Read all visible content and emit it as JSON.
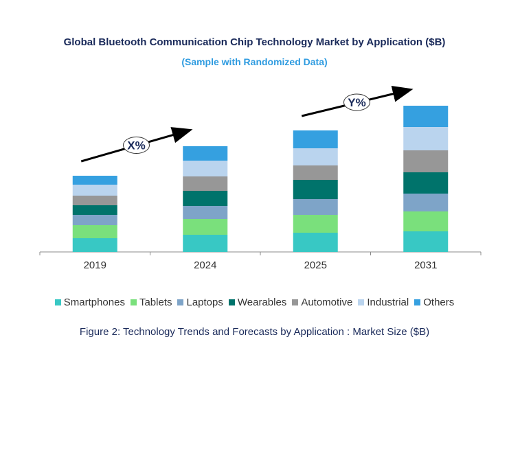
{
  "chart_data": {
    "type": "bar",
    "stacked": true,
    "title": "Global Bluetooth Communication Chip Technology Market by Application ($B)",
    "subtitle": "(Sample with Randomized Data)",
    "caption": "Figure 2: Technology  Trends  and Forecasts by Application : Market Size ($B)",
    "categories": [
      "2019",
      "2024",
      "2025",
      "2031"
    ],
    "series": [
      {
        "name": "Smartphones",
        "color": "#38c8c4",
        "values": [
          20,
          25,
          28,
          30
        ]
      },
      {
        "name": "Tablets",
        "color": "#7ae07c",
        "values": [
          19,
          23,
          26,
          29
        ]
      },
      {
        "name": "Laptops",
        "color": "#7ea4c8",
        "values": [
          15,
          19,
          23,
          26
        ]
      },
      {
        "name": "Wearables",
        "color": "#00736b",
        "values": [
          14,
          22,
          28,
          31
        ]
      },
      {
        "name": "Automotive",
        "color": "#979797",
        "values": [
          14,
          21,
          21,
          32
        ]
      },
      {
        "name": "Industrial",
        "color": "#bad4ee",
        "values": [
          16,
          23,
          25,
          34
        ]
      },
      {
        "name": "Others",
        "color": "#35a0e0",
        "values": [
          13,
          21,
          26,
          31
        ]
      }
    ],
    "annotations": [
      {
        "label": "X%",
        "from": "2019",
        "to": "2024"
      },
      {
        "label": "Y%",
        "from": "2025",
        "to": "2031"
      }
    ],
    "legend_placement": "bottom",
    "grid": false,
    "y_axis_visible": false
  }
}
